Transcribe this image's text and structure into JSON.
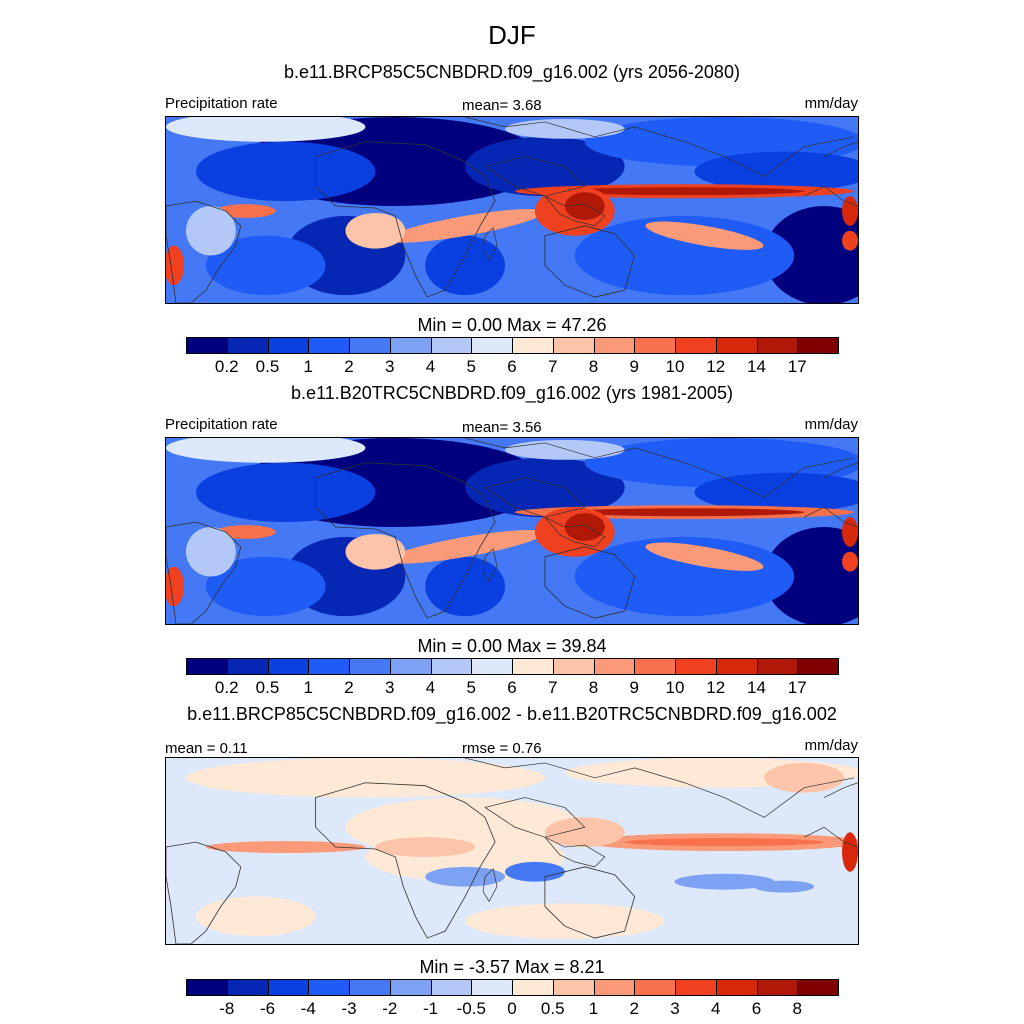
{
  "main_title": "DJF",
  "colors": {
    "scale": [
      "#00007f",
      "#0626b4",
      "#0a3fe0",
      "#1f5bf5",
      "#4478f5",
      "#7da1f3",
      "#b3c8f6",
      "#dde8fb",
      "#fee8d6",
      "#fcc4a8",
      "#fb9a78",
      "#f8704c",
      "#ef4020",
      "#d8280c",
      "#b01808",
      "#800000"
    ],
    "land_outline": "#303030"
  },
  "panels": [
    {
      "title": "b.e11.BRCP85C5CNBDRD.f09_g16.002 (yrs 2056-2080)",
      "left_label": "Precipitation rate",
      "center_label": "mean=   3.68",
      "right_label": "mm/day",
      "minmax": "Min =    0.00 Max =  47.26",
      "ticks": [
        "0.2",
        "0.5",
        "1",
        "2",
        "3",
        "4",
        "5",
        "6",
        "7",
        "8",
        "9",
        "10",
        "12",
        "14",
        "17"
      ]
    },
    {
      "title": "b.e11.B20TRC5CNBDRD.f09_g16.002 (yrs 1981-2005)",
      "left_label": "Precipitation rate",
      "center_label": "mean=   3.56",
      "right_label": "mm/day",
      "minmax": "Min =    0.00 Max =  39.84",
      "ticks": [
        "0.2",
        "0.5",
        "1",
        "2",
        "3",
        "4",
        "5",
        "6",
        "7",
        "8",
        "9",
        "10",
        "12",
        "14",
        "17"
      ]
    },
    {
      "title": "b.e11.BRCP85C5CNBDRD.f09_g16.002 - b.e11.B20TRC5CNBDRD.f09_g16.002",
      "left_label": "mean =   0.11",
      "center_label": "rmse =   0.76",
      "right_label": "mm/day",
      "minmax": "Min =  -3.57 Max =   8.21",
      "ticks": [
        "-8",
        "-6",
        "-4",
        "-3",
        "-2",
        "-1",
        "-0.5",
        "0",
        "0.5",
        "1",
        "2",
        "3",
        "4",
        "6",
        "8"
      ]
    }
  ],
  "chart_data": [
    {
      "type": "heatmap",
      "title": "b.e11.BRCP85C5CNBDRD.f09_g16.002 (yrs 2056-2080)",
      "variable": "Precipitation rate",
      "units": "mm/day",
      "mean": 3.68,
      "min": 0.0,
      "max": 47.26,
      "contour_levels": [
        0.2,
        0.5,
        1,
        2,
        3,
        4,
        5,
        6,
        7,
        8,
        9,
        10,
        12,
        14,
        17
      ]
    },
    {
      "type": "heatmap",
      "title": "b.e11.B20TRC5CNBDRD.f09_g16.002 (yrs 1981-2005)",
      "variable": "Precipitation rate",
      "units": "mm/day",
      "mean": 3.56,
      "min": 0.0,
      "max": 39.84,
      "contour_levels": [
        0.2,
        0.5,
        1,
        2,
        3,
        4,
        5,
        6,
        7,
        8,
        9,
        10,
        12,
        14,
        17
      ]
    },
    {
      "type": "heatmap",
      "title": "b.e11.BRCP85C5CNBDRD.f09_g16.002 - b.e11.B20TRC5CNBDRD.f09_g16.002",
      "units": "mm/day",
      "mean": 0.11,
      "rmse": 0.76,
      "min": -3.57,
      "max": 8.21,
      "contour_levels": [
        -8,
        -6,
        -4,
        -3,
        -2,
        -1,
        -0.5,
        0,
        0.5,
        1,
        2,
        3,
        4,
        6,
        8
      ]
    }
  ]
}
